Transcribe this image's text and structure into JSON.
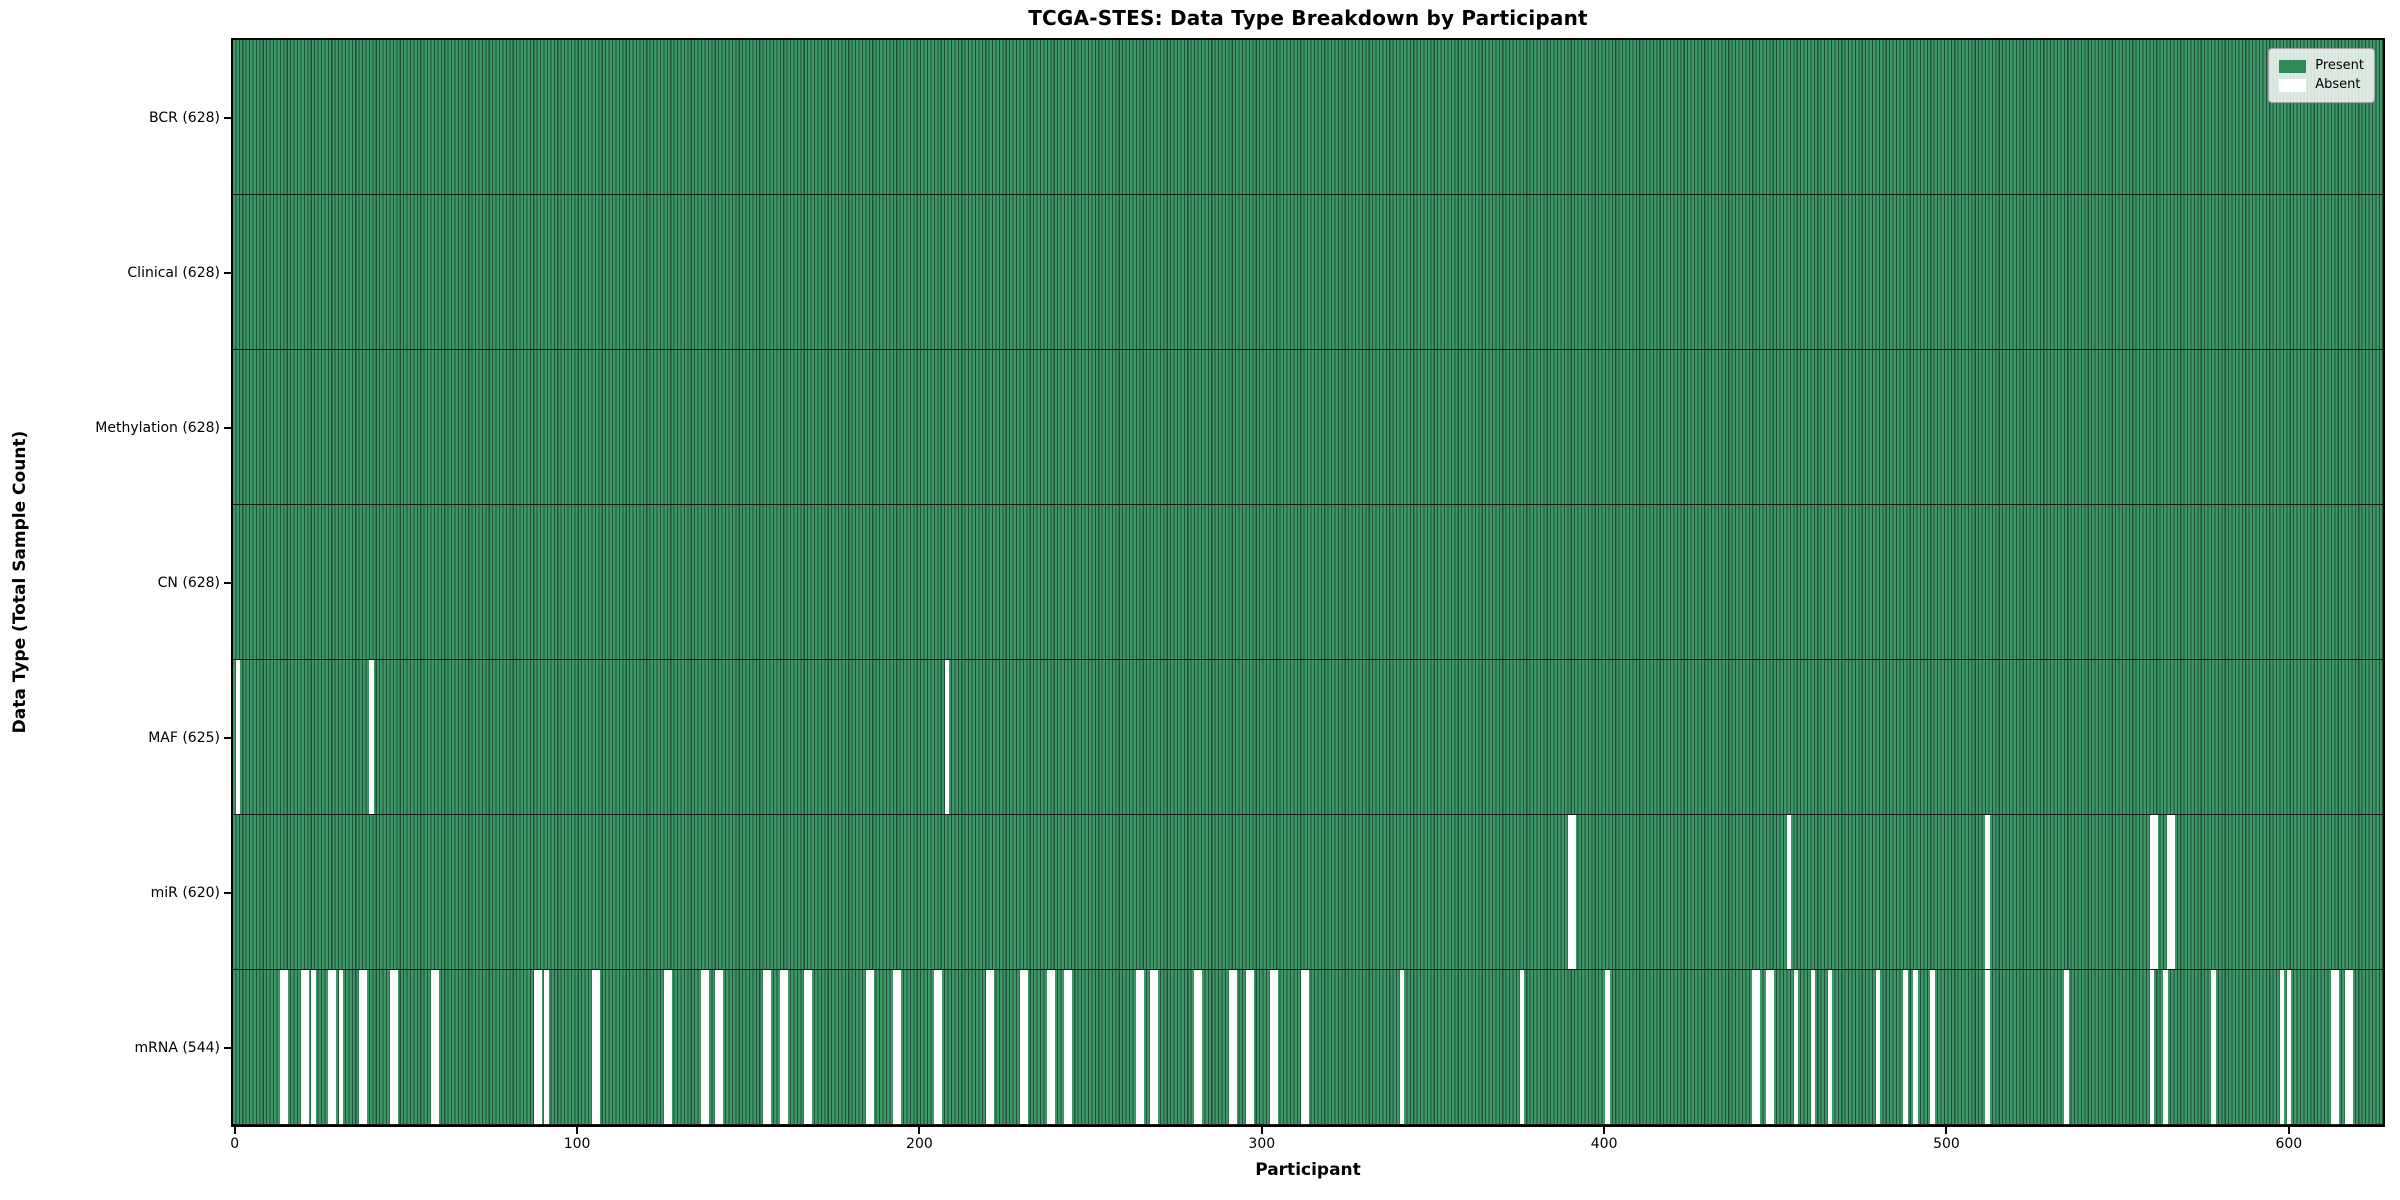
{
  "figure": {
    "title": "TCGA-STES: Data Type Breakdown by Participant",
    "xlabel": "Participant",
    "ylabel": "Data Type (Total Sample Count)"
  },
  "legend": {
    "items": [
      {
        "name": "present",
        "label": "Present",
        "color": "#2E8B57"
      },
      {
        "name": "absent",
        "label": "Absent",
        "color": "#FFFFFF"
      }
    ]
  },
  "colors": {
    "present": "#2E8B57",
    "bar_fill_light": "#3E9867",
    "bar_edge_dark": "#1F5138",
    "absent": "#FFFFFF",
    "spine": "#000000",
    "row_separator": "#141414",
    "background": "#FFFFFF"
  },
  "chart_data": {
    "type": "heatmap",
    "title": "TCGA-STES: Data Type Breakdown by Participant",
    "xlabel": "Participant",
    "ylabel": "Data Type (Total Sample Count)",
    "x_ticks": [
      0,
      100,
      200,
      300,
      400,
      500,
      600
    ],
    "x_range": [
      0,
      628
    ],
    "n_participants": 628,
    "grid": false,
    "legend_entries": [
      "Present",
      "Absent"
    ],
    "legend_position": "upper right",
    "present_color": "#2E8B57",
    "absent_color": "#FFFFFF",
    "rows": [
      {
        "label": "BCR (628)",
        "name": "BCR",
        "count": 628,
        "absent": []
      },
      {
        "label": "Clinical (628)",
        "name": "Clinical",
        "count": 628,
        "absent": []
      },
      {
        "label": "Methylation (628)",
        "name": "Methylation",
        "count": 628,
        "absent": []
      },
      {
        "label": "CN (628)",
        "name": "CN",
        "count": 628,
        "absent": []
      },
      {
        "label": "MAF (625)",
        "name": "MAF",
        "count": 625,
        "absent": [
          1,
          40,
          208
        ]
      },
      {
        "label": "miR (620)",
        "name": "miR",
        "count": 620,
        "absent": [
          390,
          391,
          454,
          512,
          560,
          561,
          565,
          566
        ]
      },
      {
        "label": "mRNA (544)",
        "name": "mRNA",
        "count": 544,
        "absent": [
          14,
          15,
          20,
          21,
          23,
          28,
          29,
          31,
          37,
          38,
          46,
          47,
          58,
          59,
          88,
          89,
          91,
          105,
          106,
          126,
          127,
          137,
          138,
          141,
          142,
          155,
          156,
          160,
          161,
          167,
          168,
          185,
          186,
          193,
          194,
          205,
          206,
          220,
          221,
          230,
          231,
          238,
          239,
          243,
          244,
          264,
          265,
          268,
          269,
          281,
          282,
          291,
          292,
          296,
          297,
          303,
          304,
          312,
          313,
          341,
          376,
          401,
          444,
          445,
          448,
          449,
          456,
          461,
          466,
          480,
          488,
          491,
          496,
          512,
          535,
          560,
          564,
          578,
          598,
          600,
          613,
          614,
          617,
          618
        ]
      }
    ]
  }
}
